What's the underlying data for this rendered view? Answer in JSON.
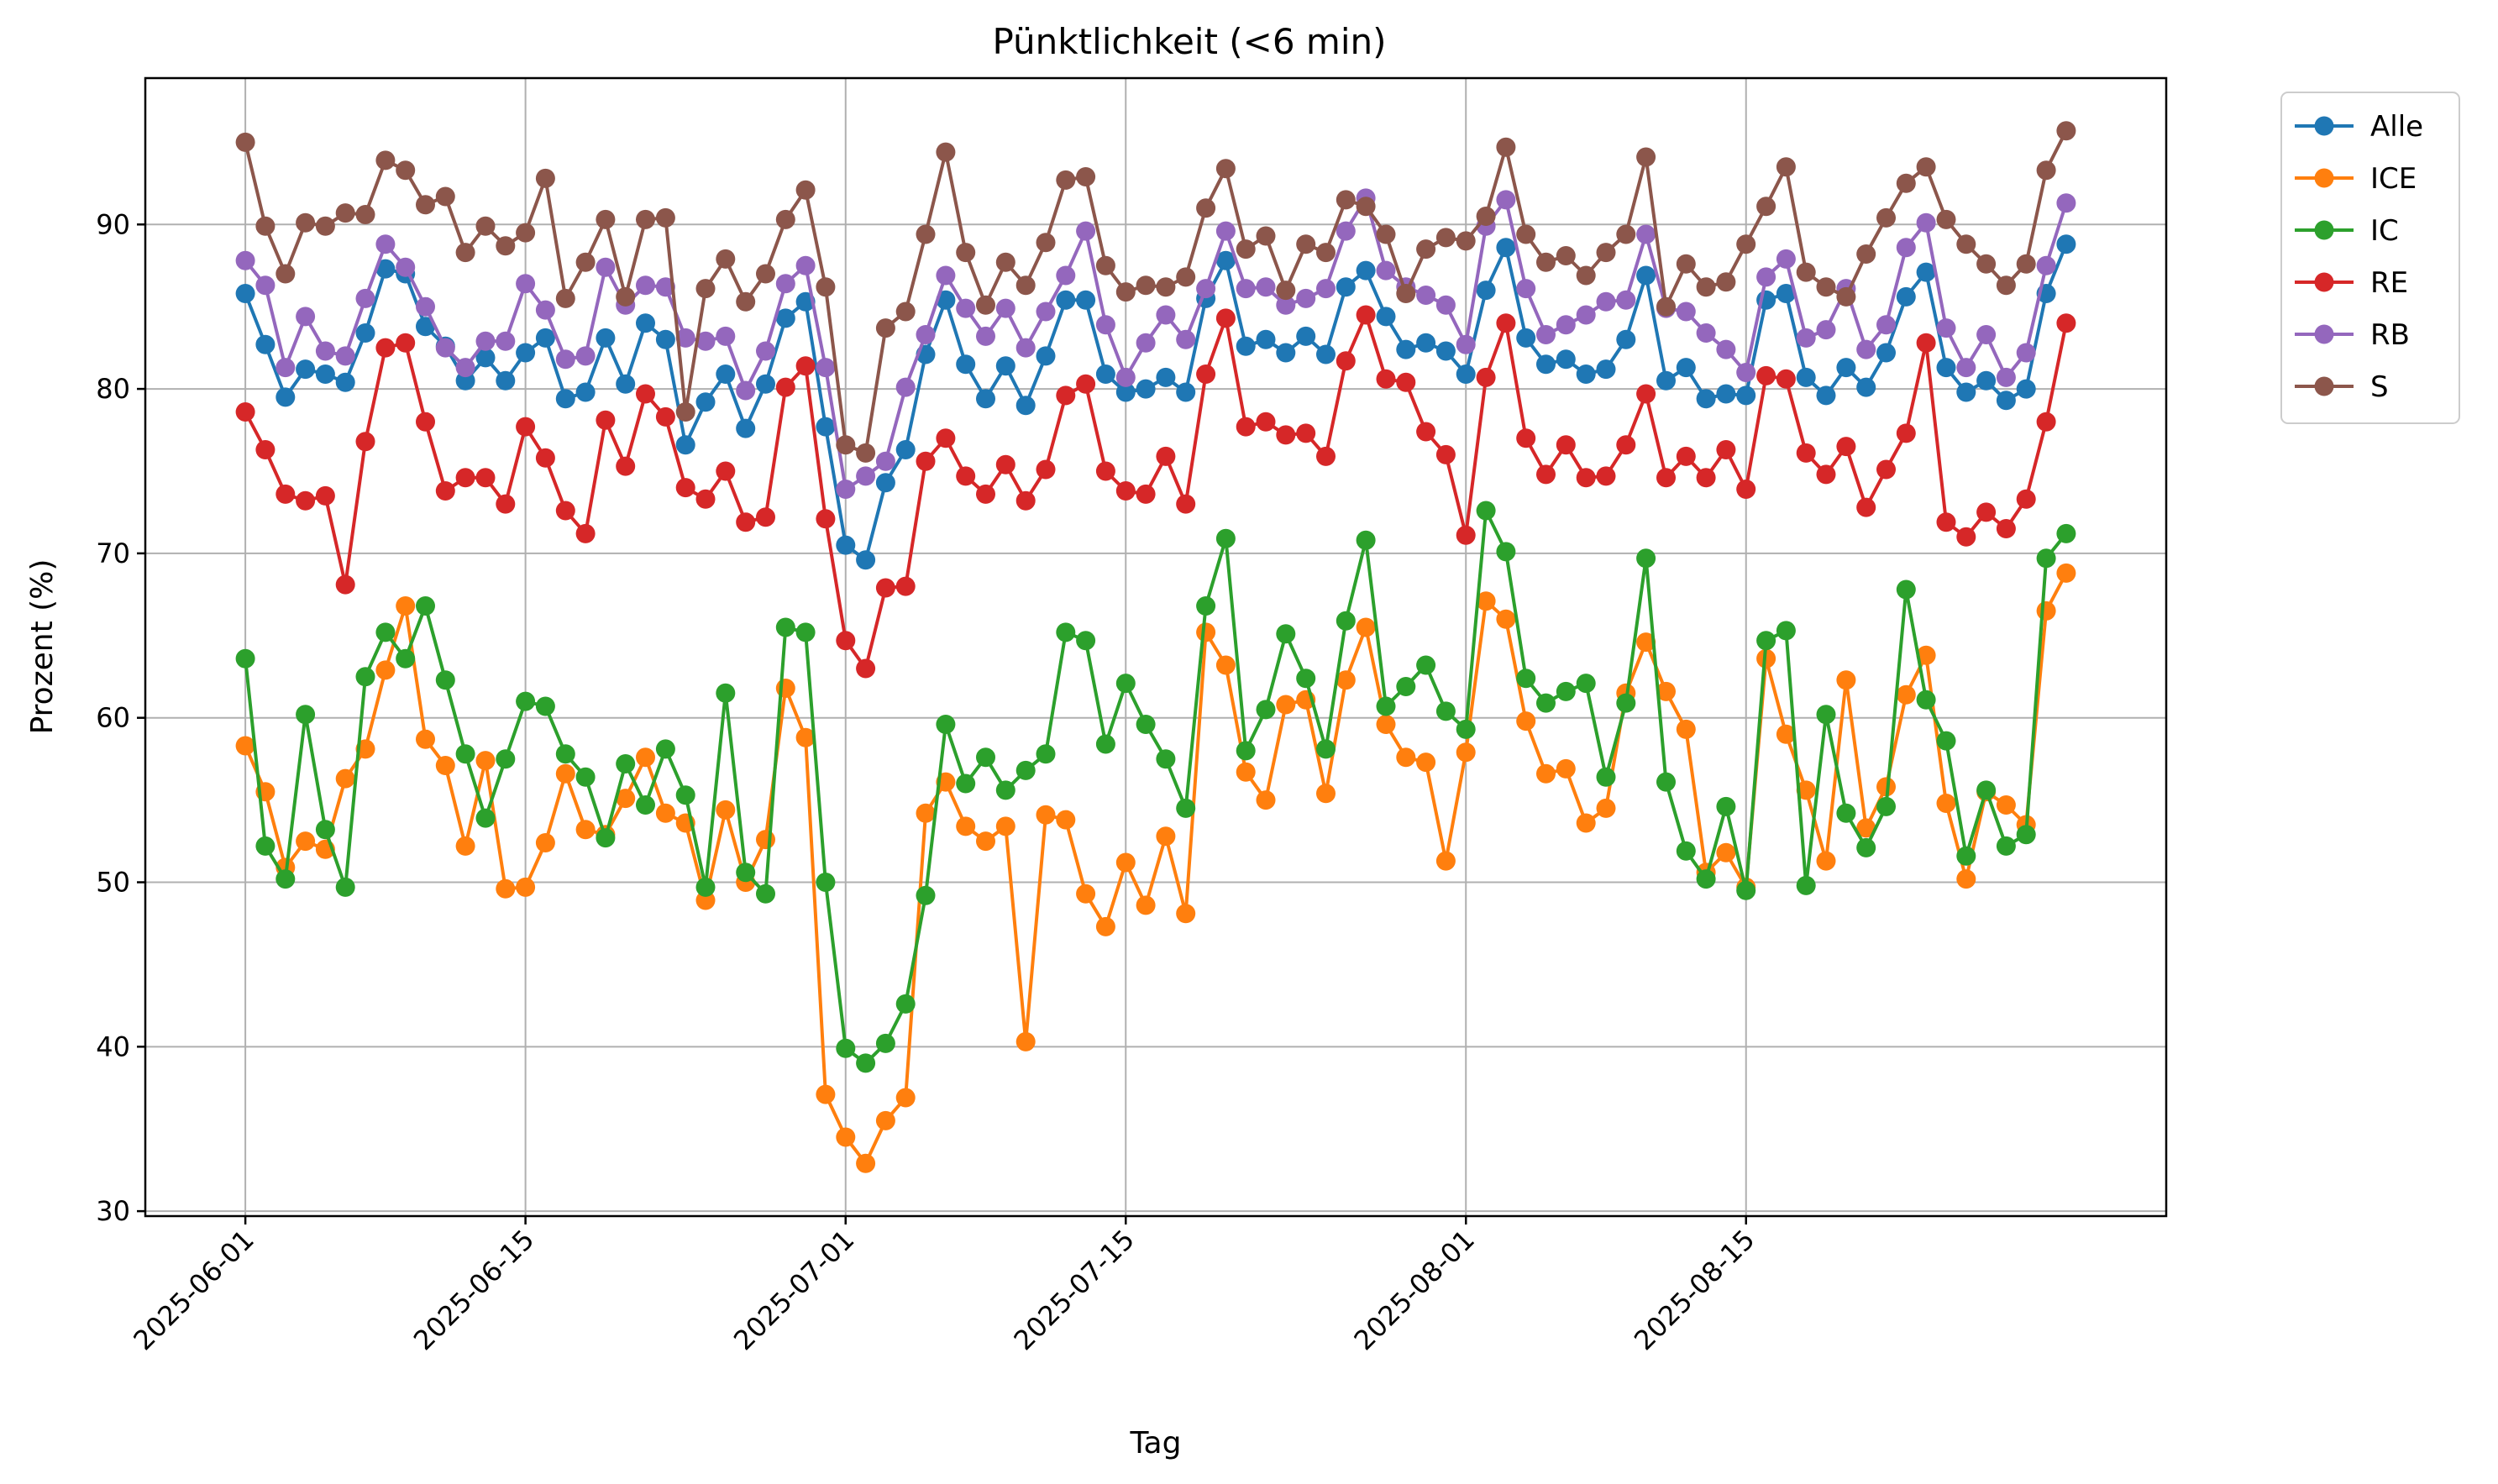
{
  "chart_data": {
    "type": "line",
    "title": "Pünktlichkeit (<6 min)",
    "xlabel": "Tag",
    "ylabel": "Prozent (%)",
    "x_start": "2025-06-01",
    "x_end": "2025-08-31",
    "xlim": [
      "2025-05-27",
      "2025-09-05"
    ],
    "ylim": [
      29.7,
      98.9
    ],
    "x_ticks": [
      "2025-06-01",
      "2025-06-15",
      "2025-07-01",
      "2025-07-15",
      "2025-08-01",
      "2025-08-15"
    ],
    "y_ticks": [
      30,
      40,
      50,
      60,
      70,
      80,
      90
    ],
    "grid": true,
    "legend_position": "outside-top-right",
    "series": [
      {
        "name": "Alle",
        "color": "#1f77b4",
        "values": [
          85.8,
          82.7,
          79.5,
          81.2,
          80.9,
          80.4,
          83.4,
          87.3,
          87.0,
          83.8,
          82.6,
          80.5,
          81.9,
          80.5,
          82.2,
          83.1,
          79.4,
          79.8,
          83.1,
          80.3,
          84.0,
          83.0,
          76.6,
          79.2,
          80.9,
          77.6,
          80.3,
          84.3,
          85.3,
          77.7,
          70.5,
          69.6,
          74.3,
          76.3,
          82.1,
          85.4,
          81.5,
          79.4,
          81.4,
          79.0,
          82.0,
          85.4,
          85.4,
          80.9,
          79.8,
          80.0,
          80.7,
          79.8,
          85.5,
          87.8,
          82.6,
          83.0,
          82.2,
          83.2,
          82.1,
          86.2,
          87.2,
          84.4,
          82.4,
          82.8,
          82.3,
          80.9,
          86.0,
          88.6,
          83.1,
          81.5,
          81.8,
          80.9,
          81.2,
          83.0,
          86.9,
          80.5,
          81.3,
          79.4,
          79.7,
          79.6,
          85.4,
          85.8,
          80.7,
          79.6,
          81.3,
          80.1,
          82.2,
          85.6,
          87.1,
          81.3,
          79.8,
          80.5,
          79.3,
          80.0,
          85.8,
          88.8
        ]
      },
      {
        "name": "ICE",
        "color": "#ff7f0e",
        "values": [
          58.3,
          55.5,
          50.9,
          52.5,
          52.0,
          56.3,
          58.1,
          62.9,
          66.8,
          58.7,
          57.1,
          52.2,
          57.4,
          49.6,
          49.7,
          52.4,
          56.6,
          53.2,
          52.9,
          55.1,
          57.6,
          54.2,
          53.6,
          48.9,
          54.4,
          50.0,
          52.6,
          61.8,
          58.8,
          37.1,
          34.5,
          32.9,
          35.5,
          36.9,
          54.2,
          56.1,
          53.4,
          52.5,
          53.4,
          40.3,
          54.1,
          53.8,
          49.3,
          47.3,
          51.2,
          48.6,
          52.8,
          48.1,
          65.2,
          63.2,
          56.7,
          55.0,
          60.8,
          61.1,
          55.4,
          62.3,
          65.5,
          59.6,
          57.6,
          57.3,
          51.3,
          57.9,
          67.1,
          66.0,
          59.8,
          56.6,
          56.9,
          53.6,
          54.5,
          61.5,
          64.6,
          61.6,
          59.3,
          50.6,
          51.8,
          49.7,
          63.6,
          59.0,
          55.6,
          51.3,
          62.3,
          53.3,
          55.8,
          61.4,
          63.8,
          54.8,
          50.2,
          55.5,
          54.7,
          53.5,
          66.5,
          68.8
        ]
      },
      {
        "name": "IC",
        "color": "#2ca02c",
        "values": [
          63.6,
          52.2,
          50.2,
          60.2,
          53.2,
          49.7,
          62.5,
          65.2,
          63.6,
          66.8,
          62.3,
          57.8,
          53.9,
          57.5,
          61.0,
          60.7,
          57.8,
          56.4,
          52.7,
          57.2,
          54.7,
          58.1,
          55.3,
          49.7,
          61.5,
          50.6,
          49.3,
          65.5,
          65.2,
          50.0,
          39.9,
          39.0,
          40.2,
          42.6,
          49.2,
          59.6,
          56.0,
          57.6,
          55.6,
          56.8,
          57.8,
          65.2,
          64.7,
          58.4,
          62.1,
          59.6,
          57.5,
          54.5,
          66.8,
          70.9,
          58.0,
          60.5,
          65.1,
          62.4,
          58.1,
          65.9,
          70.8,
          60.7,
          61.9,
          63.2,
          60.4,
          59.3,
          72.6,
          70.1,
          62.4,
          60.9,
          61.6,
          62.1,
          56.4,
          60.9,
          69.7,
          56.1,
          51.9,
          50.2,
          54.6,
          49.5,
          64.7,
          65.3,
          49.8,
          60.2,
          54.2,
          52.1,
          54.6,
          67.8,
          61.1,
          58.6,
          51.6,
          55.6,
          52.2,
          52.9,
          69.7,
          71.2
        ]
      },
      {
        "name": "RE",
        "color": "#d62728",
        "values": [
          78.6,
          76.3,
          73.6,
          73.2,
          73.5,
          68.1,
          76.8,
          82.5,
          82.8,
          78.0,
          73.8,
          74.6,
          74.6,
          73.0,
          77.7,
          75.8,
          72.6,
          71.2,
          78.1,
          75.3,
          79.7,
          78.3,
          74.0,
          73.3,
          75.0,
          71.9,
          72.2,
          80.1,
          81.4,
          72.1,
          64.7,
          63.0,
          67.9,
          68.0,
          75.6,
          77.0,
          74.7,
          73.6,
          75.4,
          73.2,
          75.1,
          79.6,
          80.3,
          75.0,
          73.8,
          73.6,
          75.9,
          73.0,
          80.9,
          84.3,
          77.7,
          78.0,
          77.2,
          77.3,
          75.9,
          81.7,
          84.5,
          80.6,
          80.4,
          77.4,
          76.0,
          71.1,
          80.7,
          84.0,
          77.0,
          74.8,
          76.6,
          74.6,
          74.7,
          76.6,
          79.7,
          74.6,
          75.9,
          74.6,
          76.3,
          73.9,
          80.8,
          80.6,
          76.1,
          74.8,
          76.5,
          72.8,
          75.1,
          77.3,
          82.8,
          71.9,
          71.0,
          72.5,
          71.5,
          73.3,
          78.0,
          84.0
        ]
      },
      {
        "name": "RB",
        "color": "#9467bd",
        "values": [
          87.8,
          86.3,
          81.3,
          84.4,
          82.3,
          82.0,
          85.5,
          88.8,
          87.4,
          85.0,
          82.5,
          81.3,
          82.9,
          82.9,
          86.4,
          84.8,
          81.8,
          82.0,
          87.4,
          85.1,
          86.3,
          86.2,
          83.1,
          82.9,
          83.2,
          79.9,
          82.3,
          86.4,
          87.5,
          81.3,
          73.9,
          74.7,
          75.6,
          80.1,
          83.3,
          86.9,
          84.9,
          83.2,
          84.9,
          82.5,
          84.7,
          86.9,
          89.6,
          83.9,
          80.7,
          82.8,
          84.5,
          83.0,
          86.1,
          89.6,
          86.1,
          86.2,
          85.1,
          85.5,
          86.1,
          89.6,
          91.6,
          87.2,
          86.2,
          85.7,
          85.1,
          82.7,
          89.9,
          91.5,
          86.1,
          83.3,
          83.9,
          84.5,
          85.3,
          85.4,
          89.4,
          84.9,
          84.7,
          83.4,
          82.4,
          81.0,
          86.8,
          87.9,
          83.1,
          83.6,
          86.1,
          82.4,
          83.9,
          88.6,
          90.1,
          83.7,
          81.3,
          83.3,
          80.7,
          82.2,
          87.5,
          91.3
        ]
      },
      {
        "name": "S",
        "color": "#8c564b",
        "values": [
          95.0,
          89.9,
          87.0,
          90.1,
          89.9,
          90.7,
          90.6,
          93.9,
          93.3,
          91.2,
          91.7,
          88.3,
          89.9,
          88.7,
          89.5,
          92.8,
          85.5,
          87.7,
          90.3,
          85.6,
          90.3,
          90.4,
          78.6,
          86.1,
          87.9,
          85.3,
          87.0,
          90.3,
          92.1,
          86.2,
          76.6,
          76.1,
          83.7,
          84.7,
          89.4,
          94.4,
          88.3,
          85.1,
          87.7,
          86.3,
          88.9,
          92.7,
          92.9,
          87.5,
          85.9,
          86.3,
          86.2,
          86.8,
          91.0,
          93.4,
          88.5,
          89.3,
          86.0,
          88.8,
          88.3,
          91.5,
          91.1,
          89.4,
          85.8,
          88.5,
          89.2,
          89.0,
          90.5,
          94.7,
          89.4,
          87.7,
          88.1,
          86.9,
          88.3,
          89.4,
          94.1,
          85.0,
          87.6,
          86.2,
          86.5,
          88.8,
          91.1,
          93.5,
          87.1,
          86.2,
          85.6,
          88.2,
          90.4,
          92.5,
          93.5,
          90.3,
          88.8,
          87.6,
          86.3,
          87.6,
          93.3,
          95.7
        ]
      }
    ]
  }
}
